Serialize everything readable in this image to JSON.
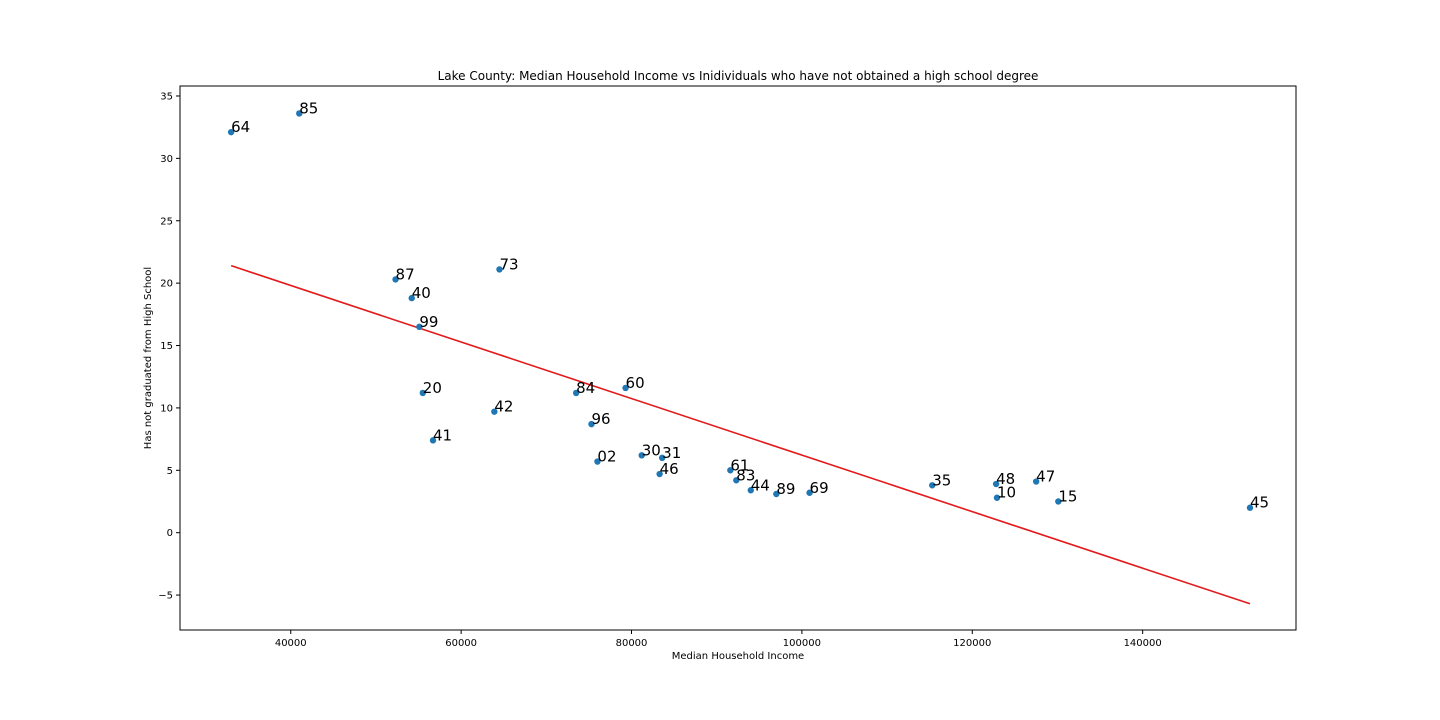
{
  "chart_data": {
    "type": "scatter",
    "title": "Lake County: Median Household Income vs Inidividuals who have not obtained a high school degree",
    "xlabel": "Median Household Income",
    "ylabel": "Has not graduated from High School",
    "xlim": [
      27000,
      158000
    ],
    "ylim": [
      -7.8,
      35.8
    ],
    "xticks": [
      40000,
      60000,
      80000,
      100000,
      120000,
      140000
    ],
    "yticks": [
      -5,
      0,
      5,
      10,
      15,
      20,
      25,
      30,
      35
    ],
    "ytick_labels": [
      "−5",
      "0",
      "5",
      "10",
      "15",
      "20",
      "25",
      "30",
      "35"
    ],
    "grid": false,
    "point_color": "#1f77b4",
    "line_color": "#e31a1c",
    "points": [
      {
        "label": "64",
        "x": 33000,
        "y": 32.1
      },
      {
        "label": "85",
        "x": 41000,
        "y": 33.6
      },
      {
        "label": "87",
        "x": 52300,
        "y": 20.3
      },
      {
        "label": "73",
        "x": 64500,
        "y": 21.1
      },
      {
        "label": "40",
        "x": 54200,
        "y": 18.8
      },
      {
        "label": "99",
        "x": 55100,
        "y": 16.5
      },
      {
        "label": "20",
        "x": 55500,
        "y": 11.2
      },
      {
        "label": "42",
        "x": 63900,
        "y": 9.7
      },
      {
        "label": "41",
        "x": 56700,
        "y": 7.4
      },
      {
        "label": "84",
        "x": 73500,
        "y": 11.2
      },
      {
        "label": "60",
        "x": 79300,
        "y": 11.6
      },
      {
        "label": "96",
        "x": 75300,
        "y": 8.7
      },
      {
        "label": "02",
        "x": 76000,
        "y": 5.7
      },
      {
        "label": "30",
        "x": 81200,
        "y": 6.2
      },
      {
        "label": "31",
        "x": 83600,
        "y": 6.0
      },
      {
        "label": "46",
        "x": 83300,
        "y": 4.7
      },
      {
        "label": "61",
        "x": 91600,
        "y": 5.0
      },
      {
        "label": "83",
        "x": 92300,
        "y": 4.2
      },
      {
        "label": "44",
        "x": 94000,
        "y": 3.4
      },
      {
        "label": "89",
        "x": 97000,
        "y": 3.1
      },
      {
        "label": "69",
        "x": 100900,
        "y": 3.2
      },
      {
        "label": "35",
        "x": 115300,
        "y": 3.8
      },
      {
        "label": "48",
        "x": 122800,
        "y": 3.9
      },
      {
        "label": "10",
        "x": 122900,
        "y": 2.8
      },
      {
        "label": "47",
        "x": 127500,
        "y": 4.1
      },
      {
        "label": "15",
        "x": 130100,
        "y": 2.5
      },
      {
        "label": "45",
        "x": 152600,
        "y": 2.0
      }
    ],
    "regression": {
      "x": [
        33000,
        152600
      ],
      "y": [
        21.4,
        -5.7
      ]
    }
  }
}
